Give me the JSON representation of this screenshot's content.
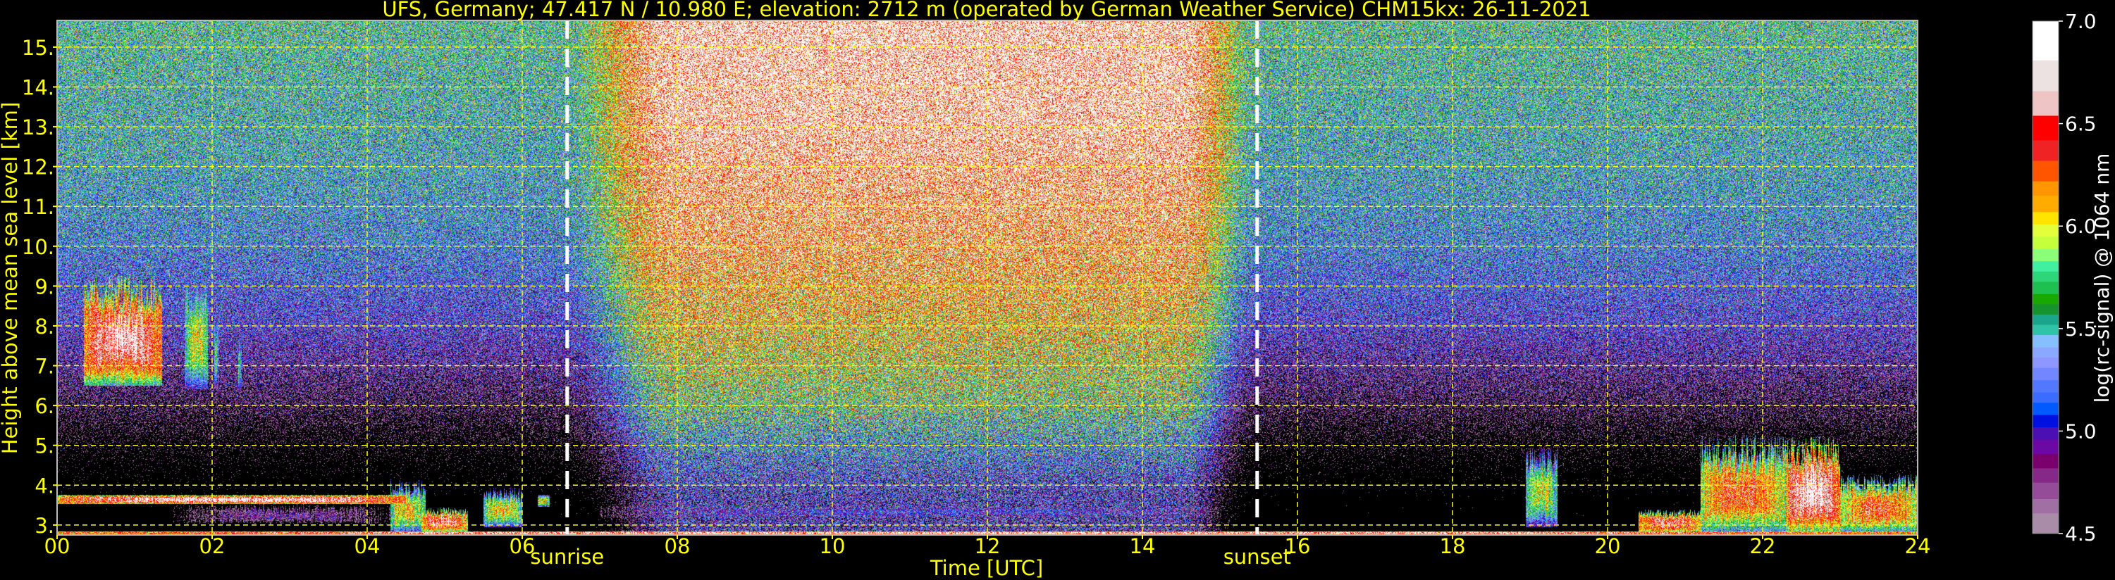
{
  "chart_data": {
    "type": "heatmap",
    "title": "UFS, Germany; 47.417 N / 10.980 E; elevation: 2712 m  (operated by German Weather Service)    CHM15kx: 26-11-2021",
    "xlabel": "Time [UTC]",
    "ylabel": "Height above mean sea level [km]",
    "xlim": [
      0,
      24
    ],
    "ylim": [
      2.75,
      15.67
    ],
    "x_ticks": [
      "00",
      "02",
      "04",
      "06",
      "08",
      "10",
      "12",
      "14",
      "16",
      "18",
      "20",
      "22",
      "24"
    ],
    "x_tick_values": [
      0,
      2,
      4,
      6,
      8,
      10,
      12,
      14,
      16,
      18,
      20,
      22,
      24
    ],
    "y_ticks": [
      "3.",
      "4.",
      "5.",
      "6.",
      "7.",
      "8.",
      "9.",
      "10.",
      "11.",
      "12.",
      "13.",
      "14.",
      "15."
    ],
    "y_tick_values": [
      3,
      4,
      5,
      6,
      7,
      8,
      9,
      10,
      11,
      12,
      13,
      14,
      15
    ],
    "grid": true,
    "grid_color": "#ffff00",
    "annotations": [
      {
        "label": "sunrise",
        "time": 6.58
      },
      {
        "label": "sunset",
        "time": 15.48
      }
    ],
    "colorbar": {
      "label": "log(rc-signal) @ 1064 nm",
      "range": [
        4.5,
        7.0
      ],
      "ticks": [
        "4.5",
        "5.0",
        "5.5",
        "6.0",
        "6.5",
        "7.0"
      ],
      "tick_values": [
        4.5,
        5.0,
        5.5,
        6.0,
        6.5,
        7.0
      ],
      "placement": "right",
      "bands": [
        [
          4.5,
          4.6,
          "#a88ca8"
        ],
        [
          4.6,
          4.67,
          "#a070a4"
        ],
        [
          4.67,
          4.75,
          "#944c98"
        ],
        [
          4.75,
          4.82,
          "#862888"
        ],
        [
          4.82,
          4.89,
          "#7a006e"
        ],
        [
          4.89,
          4.96,
          "#6c08a4"
        ],
        [
          4.96,
          5.02,
          "#4a10b4"
        ],
        [
          5.02,
          5.08,
          "#0010e0"
        ],
        [
          5.08,
          5.14,
          "#005aff"
        ],
        [
          5.14,
          5.19,
          "#3a6cff"
        ],
        [
          5.19,
          5.25,
          "#5278ff"
        ],
        [
          5.25,
          5.31,
          "#7286ff"
        ],
        [
          5.31,
          5.36,
          "#8e96ff"
        ],
        [
          5.36,
          5.41,
          "#8aa8ff"
        ],
        [
          5.41,
          5.47,
          "#86bfff"
        ],
        [
          5.47,
          5.52,
          "#2fc4a8"
        ],
        [
          5.52,
          5.57,
          "#1aa58c"
        ],
        [
          5.57,
          5.62,
          "#16922e"
        ],
        [
          5.62,
          5.67,
          "#18a800"
        ],
        [
          5.67,
          5.73,
          "#1ec050"
        ],
        [
          5.73,
          5.78,
          "#2ed67a"
        ],
        [
          5.78,
          5.83,
          "#41efa0"
        ],
        [
          5.83,
          5.89,
          "#8cff78"
        ],
        [
          5.89,
          5.95,
          "#c5ff3c"
        ],
        [
          5.95,
          6.01,
          "#e3ff3c"
        ],
        [
          6.01,
          6.07,
          "#ffe400"
        ],
        [
          6.07,
          6.15,
          "#ffab00"
        ],
        [
          6.15,
          6.22,
          "#ff9500"
        ],
        [
          6.22,
          6.32,
          "#ff5500"
        ],
        [
          6.32,
          6.42,
          "#ef2323"
        ],
        [
          6.42,
          6.54,
          "#ff0000"
        ],
        [
          6.54,
          6.66,
          "#efc4c4"
        ],
        [
          6.66,
          6.81,
          "#ede2e2"
        ],
        [
          6.81,
          7.0,
          "#ffffff"
        ]
      ]
    },
    "background_signal": {
      "night": {
        "height_km": [
          2.75,
          4,
          5,
          6,
          8,
          10,
          12,
          15.67
        ],
        "log_signal": [
          3.4,
          3.8,
          4.15,
          4.5,
          5.0,
          5.3,
          5.45,
          5.6
        ]
      },
      "day": {
        "height_km": [
          2.75,
          3.3,
          4,
          5,
          6,
          8,
          10,
          13,
          15.67
        ],
        "log_signal": [
          4.9,
          4.9,
          5.0,
          5.35,
          5.7,
          6.1,
          6.4,
          6.7,
          6.75
        ]
      }
    },
    "features": [
      {
        "t": [
          0.35,
          1.35
        ],
        "h": [
          6.5,
          8.9
        ],
        "peak": 6.95
      },
      {
        "t": [
          1.65,
          1.95
        ],
        "h": [
          6.4,
          8.9
        ],
        "peak": 6.2
      },
      {
        "t": [
          2.02,
          2.08
        ],
        "h": [
          6.4,
          8.3
        ],
        "peak": 5.9
      },
      {
        "t": [
          2.33,
          2.38
        ],
        "h": [
          6.3,
          7.7
        ],
        "peak": 5.8
      },
      {
        "t": [
          0.0,
          4.5
        ],
        "h": [
          3.52,
          3.75
        ],
        "peak": 7.0
      },
      {
        "t": [
          1.5,
          4.3
        ],
        "h": [
          2.95,
          3.55
        ],
        "peak": 5.0
      },
      {
        "t": [
          4.3,
          4.75
        ],
        "h": [
          2.8,
          3.95
        ],
        "peak": 6.3
      },
      {
        "t": [
          4.7,
          5.3
        ],
        "h": [
          2.8,
          3.35
        ],
        "peak": 6.8
      },
      {
        "t": [
          5.5,
          6.0
        ],
        "h": [
          2.95,
          3.8
        ],
        "peak": 6.3
      },
      {
        "t": [
          6.2,
          6.35
        ],
        "h": [
          3.45,
          3.75
        ],
        "peak": 6.3
      },
      {
        "t": [
          0.0,
          24.0
        ],
        "h": [
          2.75,
          2.84
        ],
        "peak": 7.0
      },
      {
        "t": [
          7.0,
          15.0
        ],
        "h": [
          3.15,
          3.5
        ],
        "peak": 5.15
      },
      {
        "t": [
          18.95,
          19.35
        ],
        "h": [
          2.95,
          4.7
        ],
        "peak": 6.2
      },
      {
        "t": [
          20.4,
          21.2
        ],
        "h": [
          2.78,
          3.3
        ],
        "peak": 6.8
      },
      {
        "t": [
          21.2,
          22.3
        ],
        "h": [
          2.78,
          4.9
        ],
        "peak": 6.6
      },
      {
        "t": [
          22.3,
          23.0
        ],
        "h": [
          2.78,
          4.85
        ],
        "peak": 7.0
      },
      {
        "t": [
          23.0,
          24.0
        ],
        "h": [
          2.78,
          4.05
        ],
        "peak": 6.6
      }
    ]
  }
}
